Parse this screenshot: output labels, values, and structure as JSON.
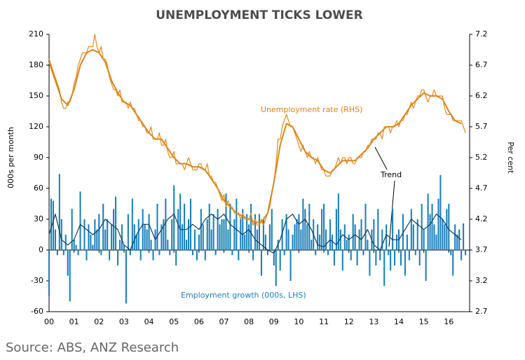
{
  "chart_data": {
    "type": "combo",
    "title": "UNEMPLOYMENT TICKS LOWER",
    "source": "Source: ABS, ANZ Research",
    "ylabel": "000s per month",
    "y2label": "Per cent",
    "annotations": [
      "Unemployment rate (RHS)",
      "Employment growth (000s, LHS)",
      "Trend"
    ],
    "xlim": [
      0,
      202
    ],
    "xticks": [
      {
        "value": 0,
        "label": "00"
      },
      {
        "value": 12,
        "label": "01"
      },
      {
        "value": 24,
        "label": "02"
      },
      {
        "value": 36,
        "label": "03"
      },
      {
        "value": 48,
        "label": "04"
      },
      {
        "value": 60,
        "label": "05"
      },
      {
        "value": 72,
        "label": "06"
      },
      {
        "value": 84,
        "label": "07"
      },
      {
        "value": 96,
        "label": "08"
      },
      {
        "value": 108,
        "label": "09"
      },
      {
        "value": 120,
        "label": "10"
      },
      {
        "value": 132,
        "label": "11"
      },
      {
        "value": 144,
        "label": "12"
      },
      {
        "value": 156,
        "label": "13"
      },
      {
        "value": 168,
        "label": "14"
      },
      {
        "value": 180,
        "label": "15"
      },
      {
        "value": 192,
        "label": "16"
      }
    ],
    "ylim": [
      -60,
      210
    ],
    "yticks": [
      -60,
      -30,
      0,
      30,
      60,
      90,
      120,
      150,
      180,
      210
    ],
    "y2lim": [
      2.7,
      7.2
    ],
    "y2ticks": [
      2.7,
      3.2,
      3.7,
      4.2,
      4.7,
      5.2,
      5.7,
      6.2,
      6.7,
      7.2
    ],
    "x": [
      0,
      1,
      2,
      3,
      4,
      5,
      6,
      7,
      8,
      9,
      10,
      11,
      12,
      13,
      14,
      15,
      16,
      17,
      18,
      19,
      20,
      21,
      22,
      23,
      24,
      25,
      26,
      27,
      28,
      29,
      30,
      31,
      32,
      33,
      34,
      35,
      36,
      37,
      38,
      39,
      40,
      41,
      42,
      43,
      44,
      45,
      46,
      47,
      48,
      49,
      50,
      51,
      52,
      53,
      54,
      55,
      56,
      57,
      58,
      59,
      60,
      61,
      62,
      63,
      64,
      65,
      66,
      67,
      68,
      69,
      70,
      71,
      72,
      73,
      74,
      75,
      76,
      77,
      78,
      79,
      80,
      81,
      82,
      83,
      84,
      85,
      86,
      87,
      88,
      89,
      90,
      91,
      92,
      93,
      94,
      95,
      96,
      97,
      98,
      99,
      100,
      101,
      102,
      103,
      104,
      105,
      106,
      107,
      108,
      109,
      110,
      111,
      112,
      113,
      114,
      115,
      116,
      117,
      118,
      119,
      120,
      121,
      122,
      123,
      124,
      125,
      126,
      127,
      128,
      129,
      130,
      131,
      132,
      133,
      134,
      135,
      136,
      137,
      138,
      139,
      140,
      141,
      142,
      143,
      144,
      145,
      146,
      147,
      148,
      149,
      150,
      151,
      152,
      153,
      154,
      155,
      156,
      157,
      158,
      159,
      160,
      161,
      162,
      163,
      164,
      165,
      166,
      167,
      168,
      169,
      170,
      171,
      172,
      173,
      174,
      175,
      176,
      177,
      178,
      179,
      180,
      181,
      182,
      183,
      184,
      185,
      186,
      187,
      188,
      189,
      190,
      191,
      192,
      193,
      194,
      195,
      196,
      197,
      198,
      199,
      200
    ],
    "series": [
      {
        "type": "bar",
        "color": "#1a80bb",
        "values": [
          -45,
          50,
          48,
          20,
          -5,
          74,
          30,
          -5,
          15,
          -25,
          -50,
          40,
          10,
          5,
          -5,
          57,
          0,
          30,
          -10,
          25,
          15,
          5,
          30,
          20,
          35,
          -5,
          45,
          20,
          30,
          -10,
          25,
          40,
          52,
          -15,
          10,
          25,
          5,
          -52,
          35,
          -5,
          50,
          25,
          15,
          30,
          -10,
          40,
          25,
          20,
          35,
          10,
          -10,
          20,
          45,
          -5,
          25,
          30,
          50,
          10,
          -5,
          30,
          63,
          -15,
          40,
          55,
          25,
          45,
          10,
          30,
          50,
          -5,
          20,
          -10,
          15,
          40,
          25,
          -10,
          30,
          45,
          20,
          35,
          -5,
          40,
          25,
          30,
          30,
          55,
          20,
          45,
          -5,
          30,
          50,
          -10,
          30,
          40,
          15,
          35,
          25,
          45,
          -10,
          35,
          20,
          35,
          -25,
          30,
          15,
          -5,
          25,
          40,
          -15,
          -35,
          10,
          -20,
          30,
          -5,
          35,
          20,
          -30,
          15,
          25,
          30,
          35,
          20,
          50,
          40,
          25,
          45,
          10,
          30,
          -5,
          25,
          15,
          40,
          45,
          20,
          -5,
          30,
          15,
          -15,
          40,
          55,
          20,
          -20,
          25,
          10,
          15,
          -10,
          35,
          25,
          -15,
          20,
          30,
          -5,
          45,
          10,
          -25,
          20,
          30,
          -15,
          40,
          -10,
          20,
          -35,
          25,
          -5,
          -20,
          40,
          -15,
          15,
          20,
          -15,
          35,
          -25,
          15,
          -10,
          40,
          25,
          -5,
          30,
          -15,
          45,
          20,
          -30,
          55,
          35,
          45,
          25,
          15,
          50,
          73,
          30,
          25,
          40,
          45,
          -5,
          -25,
          25,
          15,
          20,
          -10,
          26,
          -5
        ]
      },
      {
        "type": "line",
        "color": "#0e3a5c",
        "x": [
          0,
          3,
          6,
          9,
          12,
          15,
          18,
          21,
          24,
          27,
          30,
          33,
          36,
          39,
          42,
          45,
          48,
          51,
          54,
          57,
          60,
          63,
          66,
          69,
          72,
          75,
          78,
          81,
          84,
          87,
          90,
          93,
          96,
          99,
          102,
          105,
          108,
          111,
          114,
          117,
          120,
          123,
          126,
          129,
          132,
          135,
          138,
          141,
          144,
          147,
          150,
          153,
          156,
          159,
          162,
          165,
          168,
          171,
          174,
          177,
          180,
          183,
          186,
          189,
          192,
          195,
          198
        ],
        "values": [
          15,
          35,
          10,
          5,
          10,
          25,
          20,
          15,
          20,
          30,
          25,
          20,
          5,
          0,
          15,
          25,
          25,
          10,
          20,
          30,
          35,
          20,
          20,
          25,
          20,
          30,
          35,
          30,
          35,
          25,
          20,
          15,
          20,
          10,
          5,
          0,
          -3,
          10,
          30,
          35,
          25,
          30,
          20,
          5,
          3,
          10,
          5,
          15,
          10,
          15,
          10,
          20,
          5,
          0,
          15,
          10,
          10,
          20,
          30,
          25,
          20,
          25,
          35,
          30,
          20,
          15,
          10
        ]
      },
      {
        "type": "line",
        "axis": "y2",
        "color": "#e8891a",
        "values": [
          6.8,
          6.7,
          6.6,
          6.5,
          6.4,
          6.3,
          6.1,
          6.0,
          6.0,
          6.1,
          6.1,
          6.2,
          6.4,
          6.5,
          6.7,
          6.8,
          6.9,
          6.9,
          6.9,
          7.0,
          7.0,
          7.0,
          7.2,
          7.0,
          6.9,
          7.0,
          6.8,
          6.8,
          6.7,
          6.5,
          6.4,
          6.3,
          6.3,
          6.2,
          6.3,
          6.1,
          6.1,
          6.1,
          6.0,
          6.1,
          6.0,
          6.0,
          5.9,
          5.8,
          5.8,
          5.7,
          5.7,
          5.6,
          5.6,
          5.7,
          5.5,
          5.5,
          5.5,
          5.6,
          5.4,
          5.4,
          5.5,
          5.3,
          5.2,
          5.2,
          5.3,
          5.1,
          5.1,
          5.1,
          5.1,
          5.0,
          5.1,
          5.2,
          5.1,
          5.0,
          5.0,
          5.0,
          5.1,
          5.1,
          5.0,
          5.0,
          5.1,
          4.9,
          4.9,
          4.8,
          4.8,
          4.7,
          4.6,
          4.5,
          4.6,
          4.4,
          4.5,
          4.4,
          4.4,
          4.3,
          4.3,
          4.3,
          4.2,
          4.3,
          4.2,
          4.2,
          4.2,
          4.3,
          4.1,
          4.2,
          4.1,
          4.1,
          4.2,
          4.1,
          4.2,
          4.3,
          4.4,
          4.6,
          4.8,
          5.1,
          5.5,
          5.5,
          5.7,
          5.8,
          5.9,
          5.8,
          5.7,
          5.7,
          5.6,
          5.5,
          5.4,
          5.3,
          5.4,
          5.3,
          5.2,
          5.3,
          5.2,
          5.2,
          5.1,
          5.2,
          5.1,
          5.0,
          5.0,
          4.9,
          4.9,
          4.9,
          5.0,
          5.0,
          5.1,
          5.2,
          5.1,
          5.2,
          5.2,
          5.1,
          5.2,
          5.2,
          5.1,
          5.1,
          5.2,
          5.2,
          5.2,
          5.3,
          5.3,
          5.4,
          5.4,
          5.5,
          5.5,
          5.5,
          5.6,
          5.6,
          5.5,
          5.7,
          5.7,
          5.7,
          5.6,
          5.7,
          5.7,
          5.8,
          5.7,
          5.8,
          5.8,
          5.9,
          5.9,
          6.0,
          6.1,
          6.0,
          6.1,
          6.2,
          6.2,
          6.3,
          6.3,
          6.2,
          6.1,
          6.2,
          6.2,
          6.3,
          6.2,
          6.2,
          6.2,
          6.2,
          6.0,
          5.9,
          5.9,
          5.9,
          5.8,
          5.8,
          5.8,
          5.8,
          5.8,
          5.7,
          5.6
        ]
      },
      {
        "type": "line",
        "axis": "y2",
        "color": "#d9861c",
        "width": 2,
        "x": [
          0,
          3,
          6,
          9,
          12,
          15,
          18,
          21,
          24,
          27,
          30,
          33,
          36,
          39,
          42,
          45,
          48,
          51,
          54,
          57,
          60,
          63,
          66,
          69,
          72,
          75,
          78,
          81,
          84,
          87,
          90,
          93,
          96,
          99,
          102,
          105,
          108,
          111,
          114,
          117,
          120,
          123,
          126,
          129,
          132,
          135,
          138,
          141,
          144,
          147,
          150,
          153,
          156,
          159,
          162,
          165,
          168,
          171,
          174,
          177,
          180,
          183,
          186,
          189,
          192,
          195,
          198
        ],
        "values": [
          6.75,
          6.45,
          6.15,
          6.05,
          6.3,
          6.7,
          6.9,
          6.95,
          6.9,
          6.75,
          6.45,
          6.25,
          6.1,
          6.05,
          5.9,
          5.75,
          5.6,
          5.5,
          5.5,
          5.35,
          5.2,
          5.1,
          5.1,
          5.05,
          5.05,
          5.0,
          4.85,
          4.7,
          4.5,
          4.4,
          4.3,
          4.25,
          4.2,
          4.15,
          4.15,
          4.3,
          4.8,
          5.4,
          5.75,
          5.7,
          5.5,
          5.3,
          5.2,
          5.15,
          5.0,
          4.95,
          5.05,
          5.15,
          5.15,
          5.15,
          5.25,
          5.35,
          5.5,
          5.6,
          5.7,
          5.7,
          5.75,
          5.9,
          6.05,
          6.15,
          6.25,
          6.2,
          6.2,
          6.15,
          5.95,
          5.8,
          5.75
        ]
      }
    ]
  }
}
